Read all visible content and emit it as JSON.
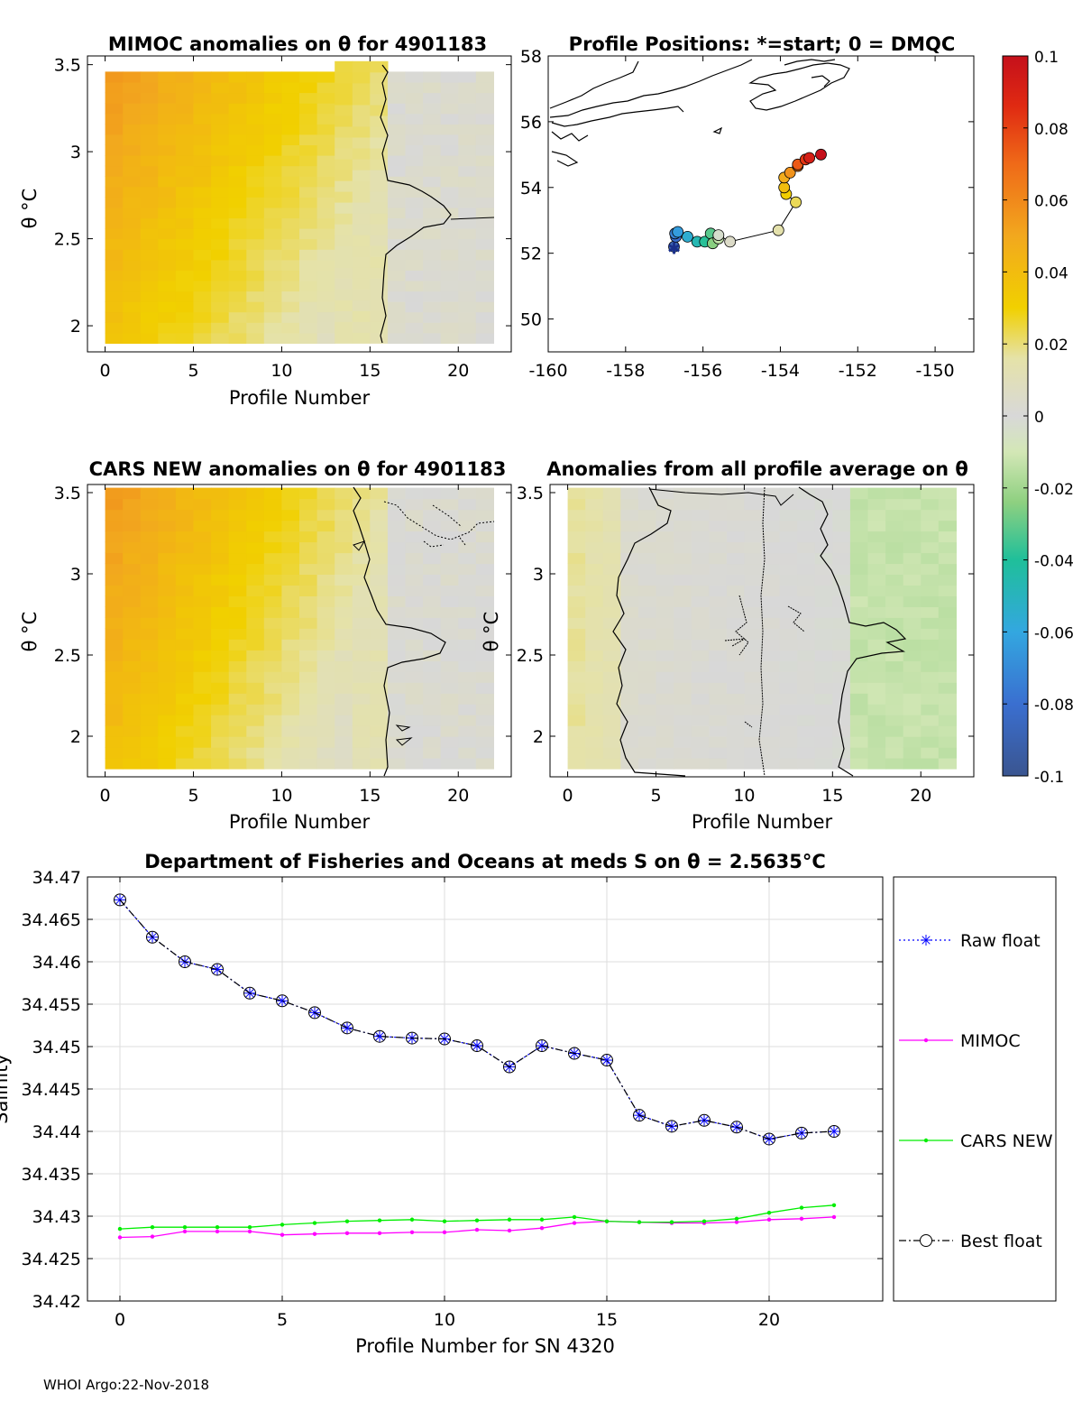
{
  "footer": "WHOI Argo:22-Nov-2018",
  "chart_data": [
    {
      "id": "mimoc",
      "type": "heatmap",
      "title": "MIMOC anomalies on θ  for 4901183",
      "xlabel": "Profile Number",
      "ylabel": "θ °C",
      "xlim": [
        -1,
        23
      ],
      "ylim": [
        1.85,
        3.55
      ],
      "xticks": [
        0,
        5,
        10,
        15,
        20
      ],
      "yticks": [
        2,
        2.5,
        3,
        3.5
      ]
    },
    {
      "id": "positions",
      "type": "scatter",
      "title": "Profile Positions: *=start; 0 = DMQC",
      "xlim": [
        -160,
        -149
      ],
      "ylim": [
        49,
        58
      ],
      "xticks": [
        -160,
        -158,
        -156,
        -154,
        -152,
        -150
      ],
      "yticks": [
        50,
        52,
        54,
        56,
        58
      ],
      "lon": [
        -156.75,
        -156.7,
        -156.72,
        -156.65,
        -156.4,
        -156.15,
        -155.95,
        -155.8,
        -155.75,
        -155.6,
        -155.6,
        -155.3,
        -154.05,
        -153.6,
        -153.85,
        -153.9,
        -153.9,
        -153.75,
        -153.55,
        -153.55,
        -153.35,
        -153.25,
        -152.95
      ],
      "lat": [
        52.2,
        52.5,
        52.6,
        52.65,
        52.5,
        52.35,
        52.35,
        52.6,
        52.3,
        52.45,
        52.55,
        52.35,
        52.7,
        53.55,
        53.8,
        54.0,
        54.3,
        54.45,
        54.65,
        54.7,
        54.85,
        54.9,
        55.0
      ]
    },
    {
      "id": "colorbar",
      "type": "colorbar",
      "range": [
        -0.1,
        0.1
      ],
      "ticks": [
        "0.1",
        "0.08",
        "0.06",
        "0.04",
        "0.02",
        "0",
        "-0.02",
        "-0.04",
        "-0.06",
        "-0.08",
        "-0.1"
      ]
    },
    {
      "id": "cars",
      "type": "heatmap",
      "title": "CARS NEW anomalies on θ for 4901183",
      "xlabel": "Profile Number",
      "ylabel": "θ °C",
      "xlim": [
        -1,
        23
      ],
      "ylim": [
        1.75,
        3.55
      ],
      "xticks": [
        0,
        5,
        10,
        15,
        20
      ],
      "yticks": [
        2,
        2.5,
        3,
        3.5
      ]
    },
    {
      "id": "allavg",
      "type": "heatmap",
      "title": "Anomalies from all profile average on θ",
      "xlabel": "Profile Number",
      "ylabel": "θ °C",
      "xlim": [
        -1,
        23
      ],
      "ylim": [
        1.75,
        3.55
      ],
      "xticks": [
        0,
        5,
        10,
        15,
        20
      ],
      "yticks": [
        2,
        2.5,
        3,
        3.5
      ]
    },
    {
      "id": "salinity",
      "type": "line",
      "title": "Department of Fisheries and Oceans at meds S on θ = 2.5635°C",
      "xlabel": "Profile Number for SN 4320",
      "ylabel": "Salinity",
      "xlim": [
        -1,
        23.5
      ],
      "ylim": [
        34.42,
        34.47
      ],
      "xticks": [
        0,
        5,
        10,
        15,
        20
      ],
      "yticks": [
        "34.42",
        "34.425",
        "34.43",
        "34.435",
        "34.44",
        "34.445",
        "34.45",
        "34.455",
        "34.46",
        "34.465",
        "34.47"
      ],
      "x": [
        0,
        1,
        2,
        3,
        4,
        5,
        6,
        7,
        8,
        9,
        10,
        11,
        12,
        13,
        14,
        15,
        16,
        17,
        18,
        19,
        20,
        21,
        22
      ],
      "series": [
        {
          "name": "Raw float",
          "color": "#0000ff",
          "values": [
            34.4673,
            34.4629,
            34.46,
            34.4591,
            34.4563,
            34.4554,
            34.454,
            34.4522,
            34.4512,
            34.451,
            34.4509,
            34.4501,
            34.4476,
            34.4501,
            34.4492,
            34.4484,
            34.4419,
            34.4406,
            34.4413,
            34.4405,
            34.4391,
            34.4398,
            34.44
          ]
        },
        {
          "name": "MIMOC",
          "color": "#ff00ff",
          "values": [
            34.4275,
            34.4276,
            34.4282,
            34.4282,
            34.4282,
            34.4278,
            34.4279,
            34.428,
            34.428,
            34.4281,
            34.4281,
            34.4284,
            34.4283,
            34.4286,
            34.4292,
            34.4294,
            34.4293,
            34.4292,
            34.4292,
            34.4293,
            34.4296,
            34.4297,
            34.4299
          ]
        },
        {
          "name": "CARS NEW",
          "color": "#00ee00",
          "values": [
            34.4285,
            34.4287,
            34.4287,
            34.4287,
            34.4287,
            34.429,
            34.4292,
            34.4294,
            34.4295,
            34.4296,
            34.4294,
            34.4295,
            34.4296,
            34.4296,
            34.4299,
            34.4294,
            34.4293,
            34.4293,
            34.4294,
            34.4297,
            34.4304,
            34.431,
            34.4313
          ]
        },
        {
          "name": "Best float",
          "color": "#000000",
          "values": [
            34.4673,
            34.4629,
            34.46,
            34.4591,
            34.4563,
            34.4554,
            34.454,
            34.4522,
            34.4512,
            34.451,
            34.4509,
            34.4501,
            34.4476,
            34.4501,
            34.4492,
            34.4484,
            34.4419,
            34.4406,
            34.4413,
            34.4405,
            34.4391,
            34.4398,
            34.44
          ]
        }
      ]
    }
  ]
}
